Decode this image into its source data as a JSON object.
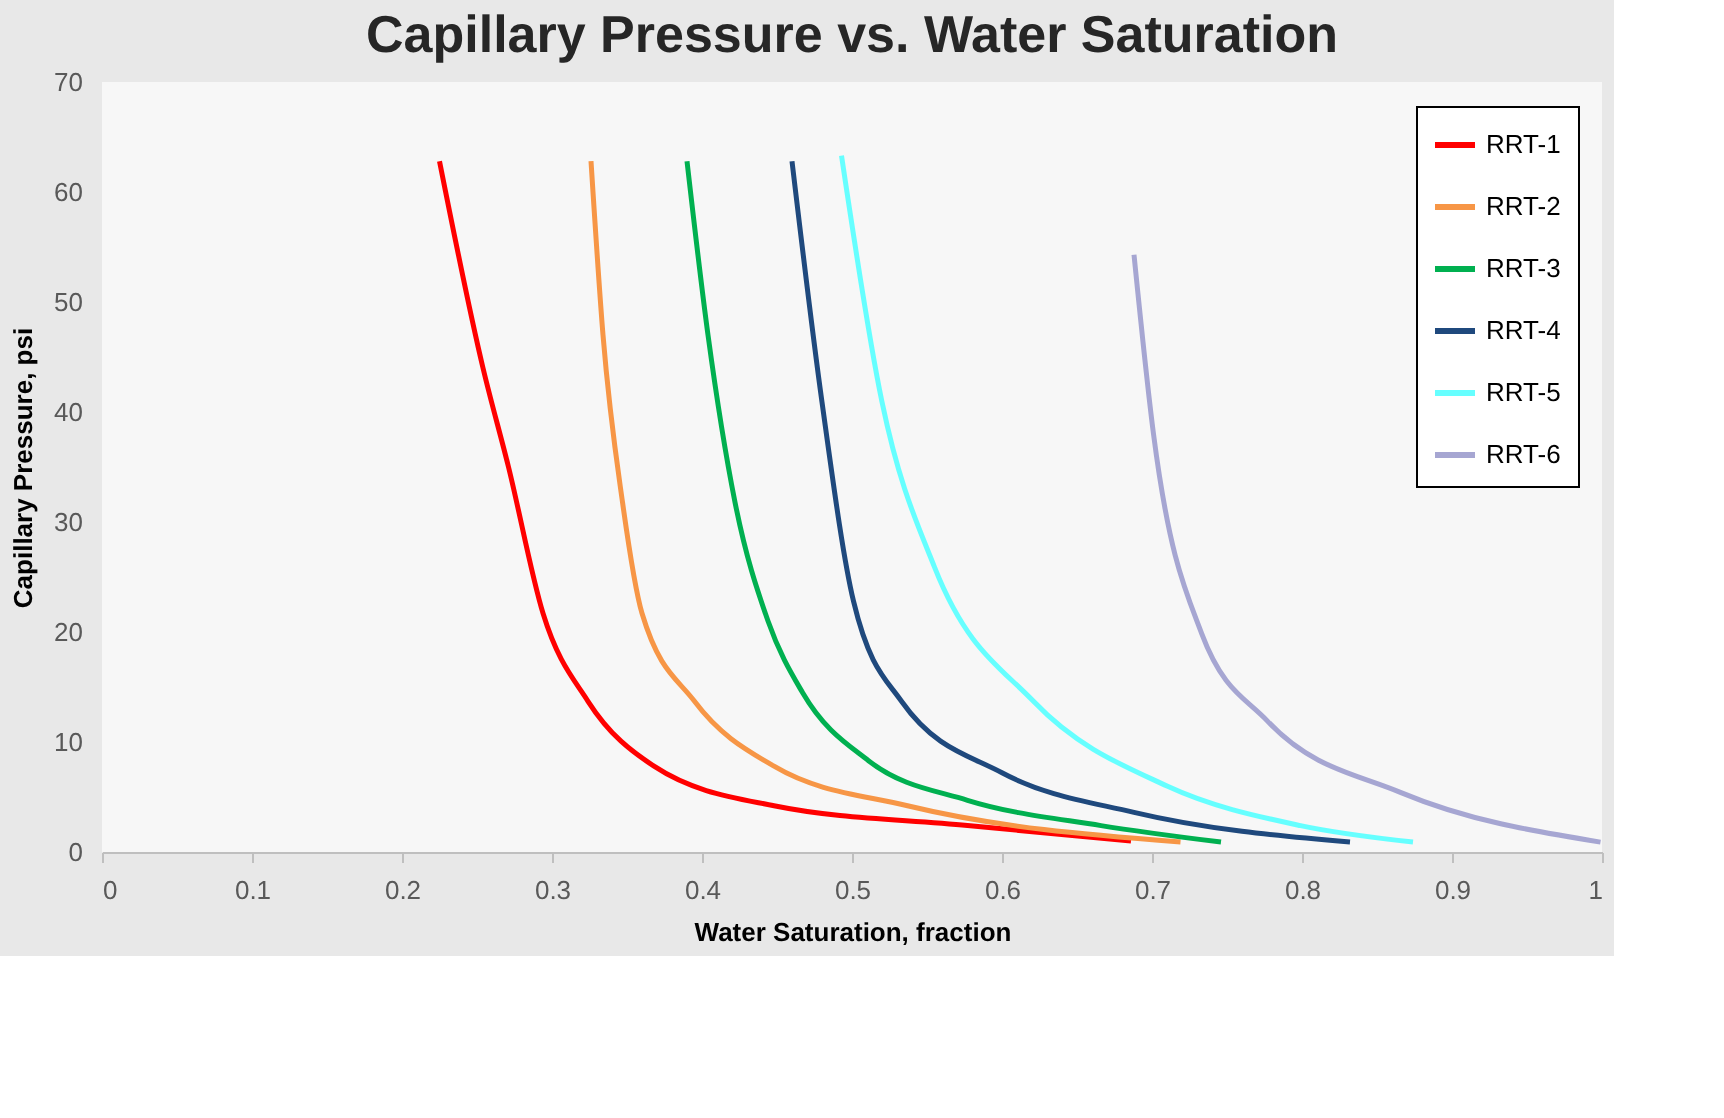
{
  "chart_data": {
    "type": "line",
    "title": "Capillary Pressure vs. Water Saturation",
    "xlabel": "Water Saturation, fraction",
    "ylabel": "Capillary Pressure, psi",
    "xlim": [
      0,
      1
    ],
    "xticks": [
      0,
      0.1,
      0.2,
      0.3,
      0.4,
      0.5,
      0.6,
      0.7,
      0.8,
      0.9,
      1
    ],
    "ylim": [
      0,
      70
    ],
    "yticks": [
      0,
      10,
      20,
      30,
      40,
      50,
      60,
      70
    ],
    "grid": false,
    "legend": "top right",
    "marker": "none",
    "line_style": "solid",
    "series": [
      {
        "name": "RRT-1",
        "color": "#ff0000",
        "x": [
          0.225,
          0.254,
          0.271,
          0.294,
          0.324,
          0.368,
          0.448,
          0.577,
          0.686
        ],
        "values": [
          62.8,
          44,
          35,
          21.7,
          13.7,
          7.8,
          4.2,
          2.4,
          1.0
        ]
      },
      {
        "name": "RRT-2",
        "color": "#f79646",
        "x": [
          0.326,
          0.334,
          0.347,
          0.36,
          0.395,
          0.448,
          0.537,
          0.719
        ],
        "values": [
          62.8,
          47,
          31.8,
          21.7,
          13.7,
          7.8,
          4.2,
          0.9
        ]
      },
      {
        "name": "RRT-3",
        "color": "#00b050",
        "x": [
          0.39,
          0.404,
          0.422,
          0.444,
          0.467,
          0.511,
          0.577,
          0.666,
          0.746
        ],
        "values": [
          62.8,
          47,
          31.8,
          21,
          14.5,
          8.3,
          4.7,
          2.4,
          0.9
        ]
      },
      {
        "name": "RRT-4",
        "color": "#1f497d",
        "x": [
          0.46,
          0.48,
          0.501,
          0.533,
          0.6,
          0.688,
          0.832
        ],
        "values": [
          62.8,
          40.9,
          22.8,
          13.7,
          7.2,
          3.6,
          0.9
        ]
      },
      {
        "name": "RRT-5",
        "color": "#66ffff",
        "x": [
          0.493,
          0.52,
          0.555,
          0.621,
          0.71,
          0.799,
          0.874
        ],
        "values": [
          63.3,
          40.9,
          25.9,
          13.7,
          6.0,
          2.4,
          0.9
        ]
      },
      {
        "name": "RRT-6",
        "color": "#a6a6d2",
        "x": [
          0.688,
          0.701,
          0.733,
          0.777,
          0.866,
          0.999
        ],
        "values": [
          54.3,
          38,
          19.9,
          11.9,
          5.4,
          0.9
        ]
      }
    ]
  }
}
